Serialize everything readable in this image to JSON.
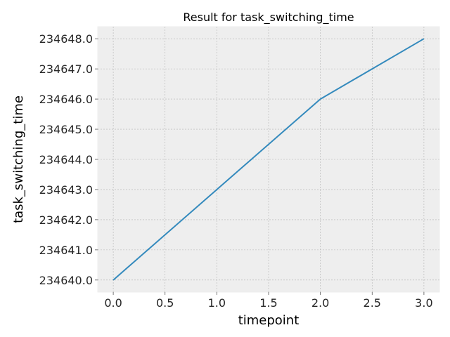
{
  "chart_data": {
    "type": "line",
    "title": "Result for task_switching_time",
    "xlabel": "timepoint",
    "ylabel": "task_switching_time",
    "x": [
      0,
      1,
      2,
      3
    ],
    "series": [
      {
        "values": [
          234640.0,
          234643.0,
          234646.0,
          234648.0
        ]
      }
    ],
    "xlim": [
      -0.15,
      3.15
    ],
    "ylim": [
      234639.6,
      234648.4
    ],
    "xticks": [
      0.0,
      0.5,
      1.0,
      1.5,
      2.0,
      2.5,
      3.0
    ],
    "xtick_labels": [
      "0.0",
      "0.5",
      "1.0",
      "1.5",
      "2.0",
      "2.5",
      "3.0"
    ],
    "yticks": [
      234640.0,
      234641.0,
      234642.0,
      234643.0,
      234644.0,
      234645.0,
      234646.0,
      234647.0,
      234648.0
    ],
    "ytick_labels": [
      "234640.0",
      "234641.0",
      "234642.0",
      "234643.0",
      "234644.0",
      "234645.0",
      "234646.0",
      "234647.0",
      "234648.0"
    ],
    "grid": true,
    "line_color": "#348ABD",
    "plot_background": "#EEEEEE",
    "grid_color": "#B2B2B2"
  }
}
